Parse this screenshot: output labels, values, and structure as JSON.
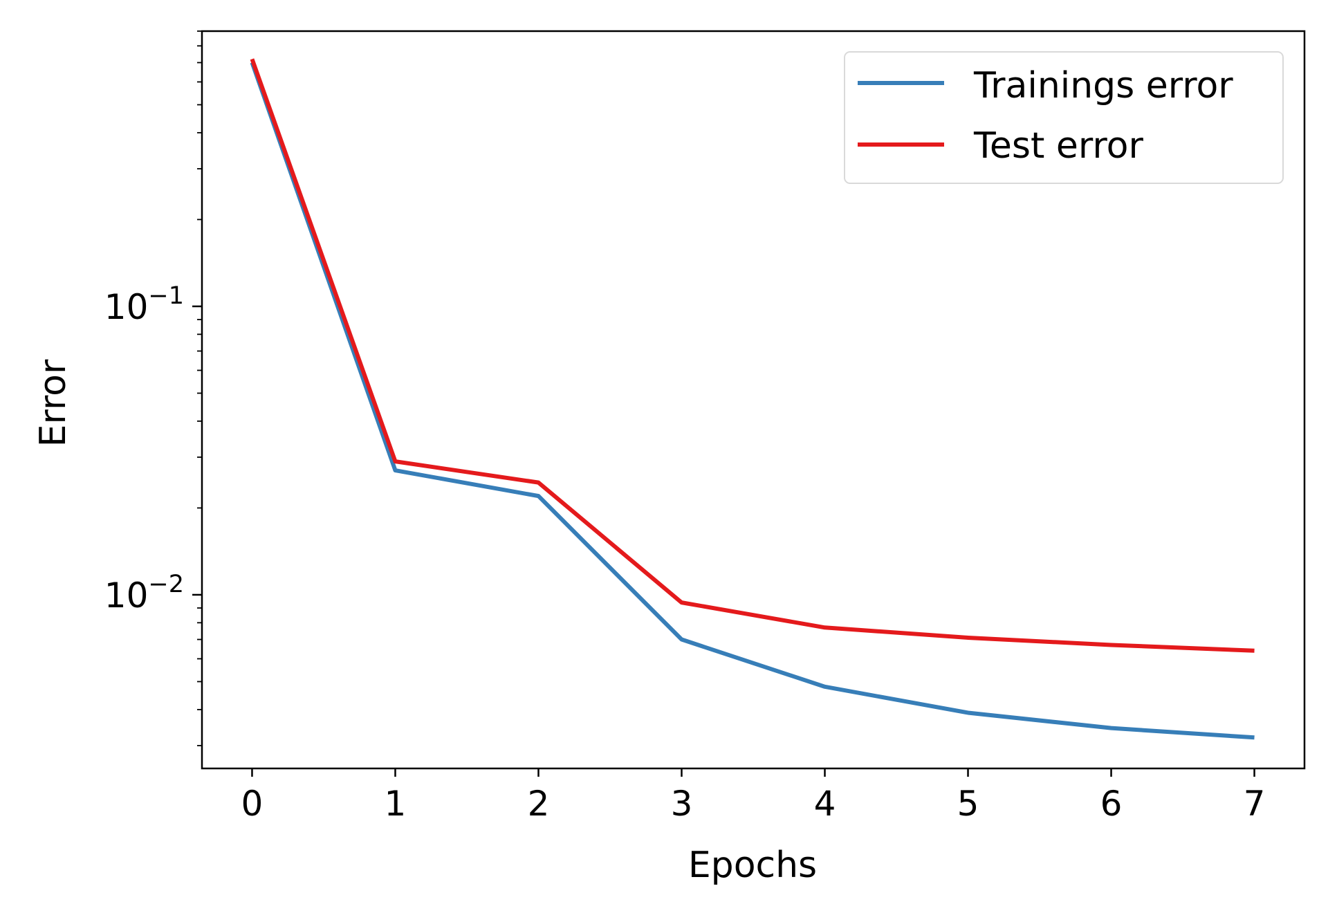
{
  "chart_data": {
    "type": "line",
    "title": "",
    "xlabel": "Epochs",
    "ylabel": "Error",
    "x": [
      0,
      1,
      2,
      3,
      4,
      5,
      6,
      7
    ],
    "xlim": [
      -0.35,
      7.35
    ],
    "ylim": [
      0.0025,
      0.9
    ],
    "yscale": "log",
    "grid": false,
    "legend_position": "top-right",
    "x_ticks": [
      0,
      1,
      2,
      3,
      4,
      5,
      6,
      7
    ],
    "x_tick_labels": [
      "0",
      "1",
      "2",
      "3",
      "4",
      "5",
      "6",
      "7"
    ],
    "y_major_ticks": [
      {
        "value": 0.1,
        "base": "10",
        "exponent": "−1"
      },
      {
        "value": 0.01,
        "base": "10",
        "exponent": "−2"
      }
    ],
    "series": [
      {
        "name": "Trainings error",
        "color": "#377eb8",
        "values": [
          0.7,
          0.027,
          0.022,
          0.007,
          0.0048,
          0.0039,
          0.00345,
          0.0032
        ]
      },
      {
        "name": "Test error",
        "color": "#e41a1c",
        "values": [
          0.72,
          0.029,
          0.0245,
          0.0094,
          0.0077,
          0.0071,
          0.0067,
          0.0064
        ]
      }
    ]
  }
}
